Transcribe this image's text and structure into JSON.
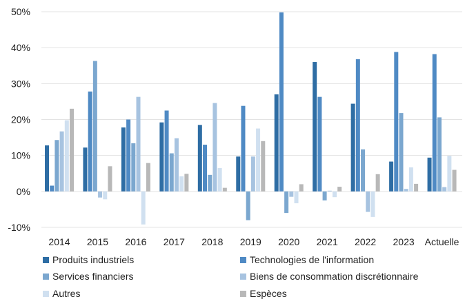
{
  "chart_data": {
    "type": "bar",
    "categories": [
      "2014",
      "2015",
      "2016",
      "2017",
      "2018",
      "2019",
      "2020",
      "2021",
      "2022",
      "2023",
      "Actuelle"
    ],
    "series": [
      {
        "name": "Produits industriels",
        "color": "#2e6da4",
        "values": [
          12.8,
          12.2,
          17.8,
          19.2,
          18.5,
          9.7,
          27.0,
          36.0,
          24.4,
          8.3,
          9.4
        ]
      },
      {
        "name": "Technologies de l'information",
        "color": "#4f8ac4",
        "values": [
          1.6,
          27.8,
          20.0,
          22.5,
          13.0,
          23.8,
          49.8,
          26.3,
          36.8,
          38.8,
          38.2
        ]
      },
      {
        "name": "Services financiers",
        "color": "#7ba7cf",
        "values": [
          14.3,
          36.3,
          13.4,
          10.6,
          4.6,
          -8.0,
          -6.0,
          -2.5,
          11.7,
          21.8,
          20.6
        ]
      },
      {
        "name": "Biens de consommation discrétionnaire",
        "color": "#a7c3e0",
        "values": [
          16.7,
          -1.7,
          26.3,
          14.8,
          24.6,
          9.7,
          -1.5,
          0.2,
          -5.7,
          0.7,
          1.2
        ]
      },
      {
        "name": "Autres",
        "color": "#d0e0f0",
        "values": [
          19.8,
          -2.2,
          -9.2,
          4.2,
          6.5,
          17.5,
          -3.3,
          -1.6,
          -7.1,
          6.7,
          9.9
        ]
      },
      {
        "name": "Espèces",
        "color": "#b8b8b8",
        "values": [
          23.0,
          7.0,
          7.9,
          4.9,
          1.0,
          14.0,
          2.0,
          1.3,
          4.8,
          2.1,
          6.0
        ]
      }
    ],
    "yticks": [
      "50%",
      "40%",
      "30%",
      "20%",
      "10%",
      "0%",
      "-10%"
    ],
    "ytick_values": [
      50,
      40,
      30,
      20,
      10,
      0,
      -10
    ],
    "ylim": [
      -10,
      50
    ],
    "grid": true,
    "legend_position": "bottom",
    "xlabel": "",
    "ylabel": ""
  }
}
